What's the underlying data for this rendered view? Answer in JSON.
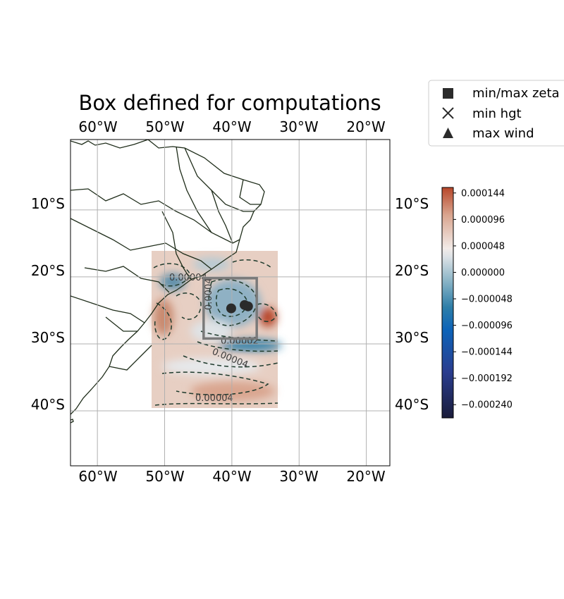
{
  "title": "Box defined for computations",
  "axes": {
    "lon_ticks": [
      "60°W",
      "50°W",
      "40°W",
      "30°W",
      "20°W"
    ],
    "lat_ticks": [
      "10°S",
      "20°S",
      "30°S",
      "40°S"
    ],
    "lon_values": [
      -60,
      -50,
      -40,
      -30,
      -20
    ],
    "lat_values": [
      -10,
      -20,
      -30,
      -40
    ],
    "lon_range": [
      -64,
      -16.5
    ],
    "lat_range": [
      0.5,
      -48.2
    ]
  },
  "legend": {
    "items": [
      {
        "marker": "square",
        "label": "min/max zeta"
      },
      {
        "marker": "cross",
        "label": "min hgt"
      },
      {
        "marker": "triangle",
        "label": "max wind"
      }
    ]
  },
  "colorbar": {
    "ticks": [
      "0.000144",
      "0.000096",
      "0.000048",
      "0.000000",
      "−0.000048",
      "−0.000096",
      "−0.000144",
      "−0.000192",
      "−0.000240"
    ],
    "tick_values": [
      0.000144,
      9.6e-05,
      4.8e-05,
      0.0,
      -4.8e-05,
      -9.6e-05,
      -0.000144,
      -0.000192,
      -0.00024
    ],
    "range": [
      -0.000264,
      0.000154
    ],
    "colors": [
      "#b7472a",
      "#d9a58f",
      "#f2ebe8",
      "#d9dfe3",
      "#8fb7c8",
      "#2e7ea8",
      "#0d63b8",
      "#2a3d8f",
      "#1a1c3a"
    ]
  },
  "contour_labels": [
    "0.00004",
    "0.0004",
    "0.00002",
    "0.00004",
    "0.00004"
  ],
  "data_region": {
    "lon": [
      -52,
      -33.2
    ],
    "lat": [
      -17,
      -40.5
    ]
  },
  "computation_box": {
    "lon": [
      -44.2,
      -36.3
    ],
    "lat": [
      -20.2,
      -29.2
    ]
  },
  "markers": [
    {
      "type": "min/max zeta",
      "lon": -40.1,
      "lat": -24.7
    },
    {
      "type": "min/max zeta",
      "lon": -38.1,
      "lat": -24.2
    },
    {
      "type": "min/max zeta",
      "lon": -37.6,
      "lat": -24.4
    }
  ],
  "colors": {
    "coastline": "#1f2d1a",
    "grid": "#b0b0b0",
    "box": "#7a7a7a",
    "marker": "#2b2b2b",
    "contour": "#1f3b2d"
  }
}
